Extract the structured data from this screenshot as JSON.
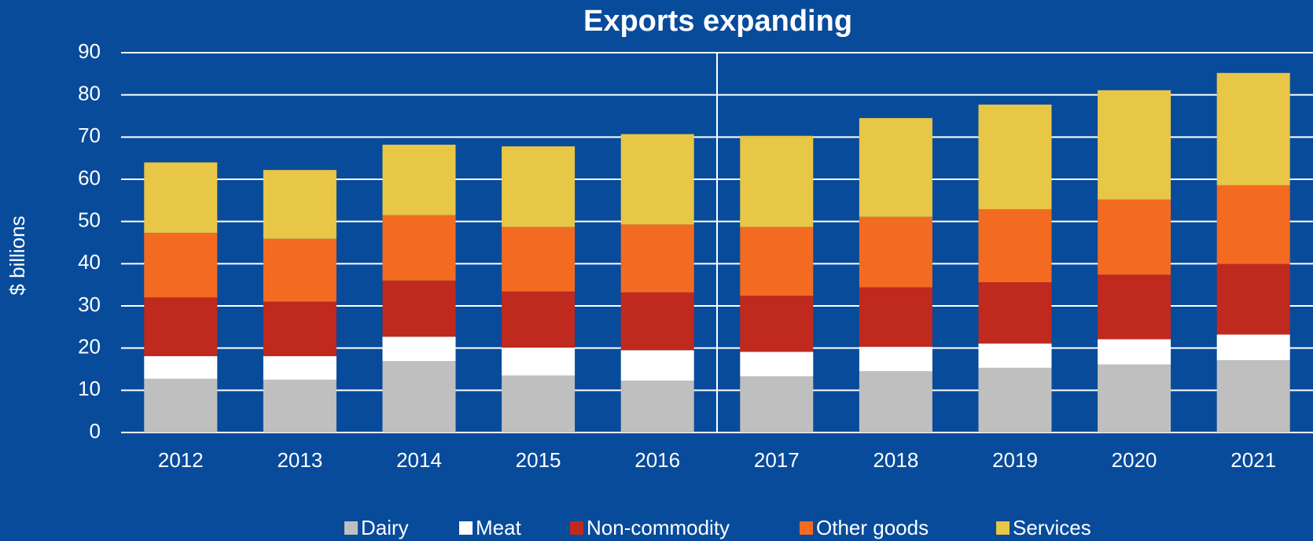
{
  "chart_data": {
    "type": "stacked_bar",
    "title": "Exports expanding",
    "y_label": "$ billions",
    "categories": [
      "2012",
      "2013",
      "2014",
      "2015",
      "2016",
      "2017",
      "2018",
      "2019",
      "2020",
      "2021"
    ],
    "series": [
      {
        "name": "Dairy",
        "color": "#bfbfbf",
        "values": [
          12.7,
          12.5,
          16.9,
          13.5,
          12.3,
          13.3,
          14.5,
          15.3,
          16.1,
          17.1
        ]
      },
      {
        "name": "Meat",
        "color": "#ffffff",
        "values": [
          5.4,
          5.6,
          5.8,
          6.6,
          7.2,
          5.8,
          5.8,
          5.8,
          6.0,
          6.1
        ]
      },
      {
        "name": "Non-commodity",
        "color": "#c0291d",
        "values": [
          13.9,
          12.9,
          13.3,
          13.3,
          13.7,
          13.3,
          14.1,
          14.5,
          15.3,
          16.8
        ]
      },
      {
        "name": "Other goods",
        "color": "#f26b21",
        "values": [
          15.3,
          14.9,
          15.5,
          15.3,
          16.1,
          16.3,
          16.7,
          17.3,
          17.8,
          18.6
        ]
      },
      {
        "name": "Services",
        "color": "#e8c646",
        "values": [
          16.7,
          16.3,
          16.7,
          19.1,
          21.4,
          21.6,
          23.4,
          24.8,
          25.9,
          26.6
        ]
      }
    ],
    "ylim": [
      0,
      90
    ],
    "yticks": [
      0,
      10,
      20,
      30,
      40,
      50,
      60,
      70,
      80,
      90
    ],
    "grid": true,
    "legend": "bottom"
  }
}
